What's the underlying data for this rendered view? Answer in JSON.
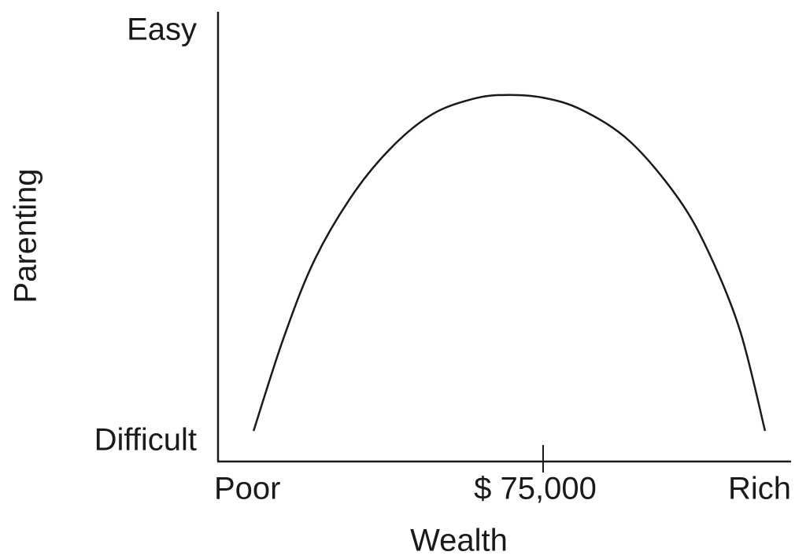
{
  "chart_data": {
    "type": "line",
    "x_label": "Wealth",
    "y_label": "Parenting",
    "x_min_label": "Poor",
    "x_max_label": "Rich",
    "y_min_label": "Difficult",
    "y_max_label": "Easy",
    "xlim": [
      0,
      132200
    ],
    "ylim": [
      0,
      100
    ],
    "xticks": [
      {
        "value": 75000,
        "label": "$ 75,000"
      }
    ],
    "x": [
      8200,
      15100,
      22300,
      31400,
      40500,
      49600,
      58700,
      65900,
      75000,
      84100,
      95000,
      105900,
      113100,
      120400,
      126200
    ],
    "series": [
      {
        "color": "#1a1a1a",
        "values": [
          6.8,
          27.4,
          44.9,
          59.8,
          70.3,
          77.3,
          80.6,
          81.5,
          80.9,
          78.1,
          71.2,
          58.9,
          46.7,
          29.2,
          6.8
        ]
      }
    ]
  }
}
